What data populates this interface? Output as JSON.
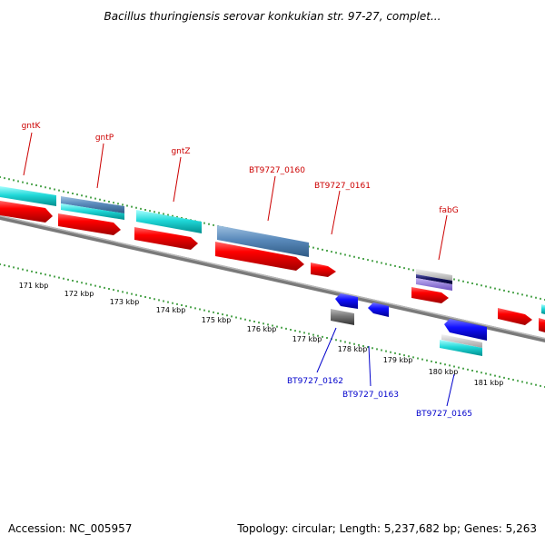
{
  "title": "Bacillus thuringiensis serovar konkukian str. 97-27, complet...",
  "footer": {
    "accession": "Accession: NC_005957",
    "topology": "Topology: circular; Length: 5,237,682 bp; Genes: 5,263"
  },
  "colors": {
    "forward_label": "#cc0000",
    "reverse_label": "#0000cc",
    "red_cds": "#ee0000",
    "cyan_feature": "#00cccc",
    "steel_blue_feature": "#4f7fb0",
    "blue_cds": "#0000ee",
    "gray_feature": "#777777",
    "navy_feature": "#1a1a6e",
    "tick_green": "#1a8a1a",
    "backbone": "#808080"
  },
  "chart_data": {
    "type": "genome-map-linear-view",
    "ruler_labels": [
      "171 kbp",
      "172 kbp",
      "173 kbp",
      "174 kbp",
      "175 kbp",
      "176 kbp",
      "177 kbp",
      "178 kbp",
      "179 kbp",
      "180 kbp",
      "181 kbp"
    ],
    "forward_labels": [
      "gntK",
      "gntP",
      "gntZ",
      "BT9727_0160",
      "BT9727_0161",
      "fabG"
    ],
    "reverse_labels": [
      "BT9727_0162",
      "BT9727_0163",
      "BT9727_0165"
    ]
  }
}
